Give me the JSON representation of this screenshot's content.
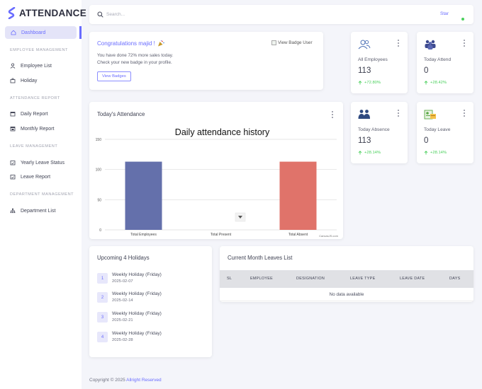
{
  "brand": {
    "name": "ATTENDANCE"
  },
  "sidebar": {
    "active_item": "Dashboard",
    "sections": [
      {
        "heading": "EMPLOYEE MANAGEMENT",
        "items": [
          "Employee List",
          "Holiday"
        ]
      },
      {
        "heading": "ATTENDANCE REPORT",
        "items": [
          "Daily Report",
          "Monthly Report"
        ]
      },
      {
        "heading": "LEAVE MANAGEMENT",
        "items": [
          "Yearly Leave Status",
          "Leave Report"
        ]
      },
      {
        "heading": "DEPARTMENT MANAGEMENT",
        "items": [
          "Department List"
        ]
      }
    ]
  },
  "topbar": {
    "search_placeholder": "Search...",
    "star_label": "Star"
  },
  "congrats": {
    "title": "Congratulations majid !",
    "line1": "You have done 72% more sales today.",
    "line2": "Check your new badge in your profile.",
    "button": "View Badges",
    "image_alt": "View Badge User"
  },
  "stats": [
    {
      "label": "All Employees",
      "value": "113",
      "change": "+72.80%",
      "icon": "users-outline-icon"
    },
    {
      "label": "Today Attend",
      "value": "0",
      "change": "+28.42%",
      "icon": "team-icon"
    },
    {
      "label": "Today Absence",
      "value": "113",
      "change": "+28.14%",
      "icon": "group-icon"
    },
    {
      "label": "Today Leave",
      "value": "0",
      "change": "+28.14%",
      "icon": "leave-card-icon"
    }
  ],
  "attendance_card": {
    "title": "Today's Attendance",
    "watermark": "CanvasJS.com"
  },
  "chart_data": {
    "type": "bar",
    "title": "Daily attendance history",
    "categories": [
      "Total Employees",
      "Total Present",
      "Total Absent"
    ],
    "values": [
      113,
      0,
      113
    ],
    "colors": [
      "#6470ab",
      "#6470ab",
      "#e0736a"
    ],
    "ylim": [
      0,
      150
    ],
    "yticks": [
      0,
      50,
      100,
      150
    ],
    "grid": true
  },
  "holidays": {
    "title": "Upcoming 4 Holidays",
    "items": [
      {
        "num": "1",
        "name": "Weekly Holiday (Friday)",
        "date": "2025-02-07"
      },
      {
        "num": "2",
        "name": "Weekly Holiday (Friday)",
        "date": "2025-02-14"
      },
      {
        "num": "3",
        "name": "Weekly Holiday (Friday)",
        "date": "2025-02-21"
      },
      {
        "num": "4",
        "name": "Weekly Holiday (Friday)",
        "date": "2025-02-28"
      }
    ]
  },
  "leaves": {
    "title": "Current Month Leaves List",
    "columns": [
      "SL",
      "EMPLOYEE",
      "DESIGNATION",
      "LEAVE TYPE",
      "LEAVE DATE",
      "DAYS"
    ],
    "empty_text": "No data available"
  },
  "footer": {
    "text": "Copyright © 2025",
    "link": "Allright Reserved"
  },
  "colors": {
    "accent": "#696cff",
    "success": "#4ad05c"
  }
}
